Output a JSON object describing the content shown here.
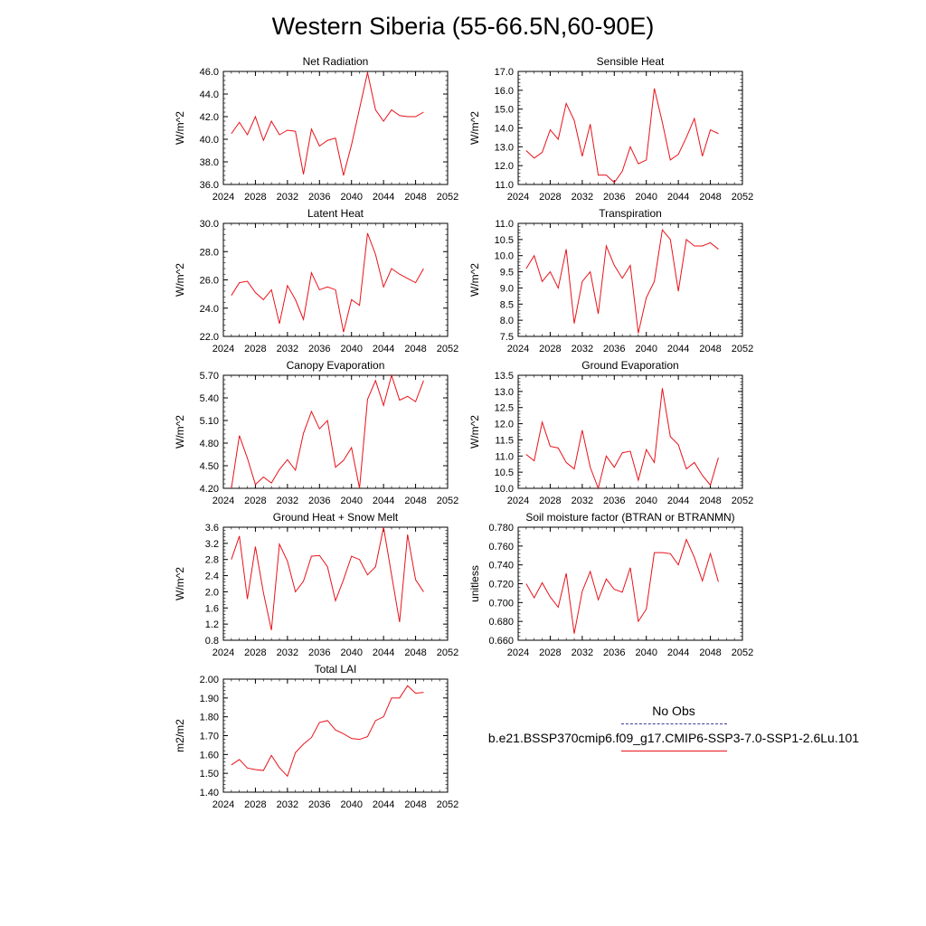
{
  "title": "Western Siberia (55-66.5N,60-90E)",
  "legend": [
    {
      "label": "No Obs",
      "color": "#3c3c9a",
      "dash": "dashed"
    },
    {
      "label": "b.e21.BSSP370cmip6.f09_g17.CMIP6-SSP3-7.0-SSP1-2.6Lu.101",
      "color": "#e8121a",
      "dash": "solid"
    }
  ],
  "line_color": "#e8121a",
  "chart_data": [
    {
      "type": "line",
      "title": "Net Radiation",
      "ylabel": "W/m^2",
      "xlim": [
        2024,
        2052
      ],
      "xticks": [
        "2024",
        "2028",
        "2032",
        "2036",
        "2040",
        "2044",
        "2048",
        "2052"
      ],
      "ylim": [
        36.0,
        46.0
      ],
      "yticks": [
        "36.0",
        "38.0",
        "40.0",
        "42.0",
        "44.0",
        "46.0"
      ],
      "x": [
        2025,
        2026,
        2027,
        2028,
        2029,
        2030,
        2031,
        2032,
        2033,
        2034,
        2035,
        2036,
        2037,
        2038,
        2039,
        2040,
        2041,
        2042,
        2043,
        2044,
        2045,
        2046,
        2047,
        2048,
        2049
      ],
      "values": [
        40.5,
        41.5,
        40.4,
        42.0,
        39.9,
        41.6,
        40.4,
        40.8,
        40.7,
        36.9,
        40.9,
        39.4,
        39.9,
        40.1,
        36.8,
        39.5,
        42.7,
        45.9,
        42.6,
        41.6,
        42.6,
        42.1,
        42.0,
        42.0,
        42.4
      ]
    },
    {
      "type": "line",
      "title": "Sensible Heat",
      "ylabel": "W/m^2",
      "xlim": [
        2024,
        2052
      ],
      "xticks": [
        "2024",
        "2028",
        "2032",
        "2036",
        "2040",
        "2044",
        "2048",
        "2052"
      ],
      "ylim": [
        11.0,
        17.0
      ],
      "yticks": [
        "11.0",
        "12.0",
        "13.0",
        "14.0",
        "15.0",
        "16.0",
        "17.0"
      ],
      "x": [
        2025,
        2026,
        2027,
        2028,
        2029,
        2030,
        2031,
        2032,
        2033,
        2034,
        2035,
        2036,
        2037,
        2038,
        2039,
        2040,
        2041,
        2042,
        2043,
        2044,
        2045,
        2046,
        2047,
        2048,
        2049
      ],
      "values": [
        12.8,
        12.4,
        12.7,
        13.9,
        13.4,
        15.3,
        14.4,
        12.5,
        14.2,
        11.5,
        11.5,
        11.1,
        11.7,
        13.0,
        12.1,
        12.3,
        16.1,
        14.3,
        12.3,
        12.6,
        13.5,
        14.5,
        12.5,
        13.9,
        13.7
      ]
    },
    {
      "type": "line",
      "title": "Latent Heat",
      "ylabel": "W/m^2",
      "xlim": [
        2024,
        2052
      ],
      "xticks": [
        "2024",
        "2028",
        "2032",
        "2036",
        "2040",
        "2044",
        "2048",
        "2052"
      ],
      "ylim": [
        22.0,
        30.0
      ],
      "yticks": [
        "22.0",
        "24.0",
        "26.0",
        "28.0",
        "30.0"
      ],
      "x": [
        2025,
        2026,
        2027,
        2028,
        2029,
        2030,
        2031,
        2032,
        2033,
        2034,
        2035,
        2036,
        2037,
        2038,
        2039,
        2040,
        2041,
        2042,
        2043,
        2044,
        2045,
        2046,
        2047,
        2048,
        2049
      ],
      "values": [
        24.9,
        25.8,
        25.9,
        25.1,
        24.6,
        25.3,
        22.9,
        25.6,
        24.6,
        23.2,
        26.5,
        25.3,
        25.5,
        25.3,
        22.3,
        24.6,
        24.2,
        29.3,
        27.8,
        25.5,
        26.8,
        26.4,
        26.1,
        25.8,
        26.8
      ]
    },
    {
      "type": "line",
      "title": "Transpiration",
      "ylabel": "W/m^2",
      "xlim": [
        2024,
        2052
      ],
      "xticks": [
        "2024",
        "2028",
        "2032",
        "2036",
        "2040",
        "2044",
        "2048",
        "2052"
      ],
      "ylim": [
        7.5,
        11.0
      ],
      "yticks": [
        "7.5",
        "8.0",
        "8.5",
        "9.0",
        "9.5",
        "10.0",
        "10.5",
        "11.0"
      ],
      "x": [
        2025,
        2026,
        2027,
        2028,
        2029,
        2030,
        2031,
        2032,
        2033,
        2034,
        2035,
        2036,
        2037,
        2038,
        2039,
        2040,
        2041,
        2042,
        2043,
        2044,
        2045,
        2046,
        2047,
        2048,
        2049
      ],
      "values": [
        9.6,
        10.0,
        9.2,
        9.5,
        9.0,
        10.2,
        7.9,
        9.2,
        9.5,
        8.2,
        10.3,
        9.7,
        9.3,
        9.7,
        7.6,
        8.7,
        9.2,
        10.8,
        10.5,
        8.9,
        10.5,
        10.3,
        10.3,
        10.4,
        10.2
      ]
    },
    {
      "type": "line",
      "title": "Canopy Evaporation",
      "ylabel": "W/m^2",
      "xlim": [
        2024,
        2052
      ],
      "xticks": [
        "2024",
        "2028",
        "2032",
        "2036",
        "2040",
        "2044",
        "2048",
        "2052"
      ],
      "ylim": [
        4.2,
        5.7
      ],
      "yticks": [
        "4.20",
        "4.50",
        "4.80",
        "5.10",
        "5.40",
        "5.70"
      ],
      "x": [
        2025,
        2026,
        2027,
        2028,
        2029,
        2030,
        2031,
        2032,
        2033,
        2034,
        2035,
        2036,
        2037,
        2038,
        2039,
        2040,
        2041,
        2042,
        2043,
        2044,
        2045,
        2046,
        2047,
        2048,
        2049
      ],
      "values": [
        4.2,
        4.9,
        4.6,
        4.25,
        4.35,
        4.27,
        4.45,
        4.58,
        4.44,
        4.93,
        5.22,
        4.99,
        5.1,
        4.48,
        4.57,
        4.74,
        4.2,
        5.38,
        5.63,
        5.3,
        5.7,
        5.37,
        5.42,
        5.35,
        5.63
      ]
    },
    {
      "type": "line",
      "title": "Ground Evaporation",
      "ylabel": "W/m^2",
      "xlim": [
        2024,
        2052
      ],
      "xticks": [
        "2024",
        "2028",
        "2032",
        "2036",
        "2040",
        "2044",
        "2048",
        "2052"
      ],
      "ylim": [
        10.0,
        13.5
      ],
      "yticks": [
        "10.0",
        "10.5",
        "11.0",
        "11.5",
        "12.0",
        "12.5",
        "13.0",
        "13.5"
      ],
      "x": [
        2025,
        2026,
        2027,
        2028,
        2029,
        2030,
        2031,
        2032,
        2033,
        2034,
        2035,
        2036,
        2037,
        2038,
        2039,
        2040,
        2041,
        2042,
        2043,
        2044,
        2045,
        2046,
        2047,
        2048,
        2049
      ],
      "values": [
        11.05,
        10.85,
        12.05,
        11.3,
        11.25,
        10.8,
        10.6,
        11.8,
        10.65,
        10.0,
        11.0,
        10.65,
        11.1,
        11.15,
        10.25,
        11.2,
        10.8,
        13.1,
        11.6,
        11.35,
        10.6,
        10.8,
        10.4,
        10.1,
        10.95
      ]
    },
    {
      "type": "line",
      "title": "Ground Heat + Snow Melt",
      "ylabel": "W/m^2",
      "xlim": [
        2024,
        2052
      ],
      "xticks": [
        "2024",
        "2028",
        "2032",
        "2036",
        "2040",
        "2044",
        "2048",
        "2052"
      ],
      "ylim": [
        0.8,
        3.6
      ],
      "yticks": [
        "0.8",
        "1.2",
        "1.6",
        "2.0",
        "2.4",
        "2.8",
        "3.2",
        "3.6"
      ],
      "x": [
        2025,
        2026,
        2027,
        2028,
        2029,
        2030,
        2031,
        2032,
        2033,
        2034,
        2035,
        2036,
        2037,
        2038,
        2039,
        2040,
        2041,
        2042,
        2043,
        2044,
        2045,
        2046,
        2047,
        2048,
        2049
      ],
      "values": [
        2.8,
        3.38,
        1.82,
        3.12,
        1.98,
        1.05,
        3.18,
        2.76,
        2.0,
        2.26,
        2.88,
        2.9,
        2.62,
        1.78,
        2.3,
        2.88,
        2.8,
        2.42,
        2.62,
        3.6,
        2.42,
        1.25,
        3.42,
        2.3,
        2.0
      ]
    },
    {
      "type": "line",
      "title": "Soil moisture factor (BTRAN or BTRANMN)",
      "ylabel": "unitless",
      "xlim": [
        2024,
        2052
      ],
      "xticks": [
        "2024",
        "2028",
        "2032",
        "2036",
        "2040",
        "2044",
        "2048",
        "2052"
      ],
      "ylim": [
        0.66,
        0.78
      ],
      "yticks": [
        "0.660",
        "0.680",
        "0.700",
        "0.720",
        "0.740",
        "0.760",
        "0.780"
      ],
      "x": [
        2025,
        2026,
        2027,
        2028,
        2029,
        2030,
        2031,
        2032,
        2033,
        2034,
        2035,
        2036,
        2037,
        2038,
        2039,
        2040,
        2041,
        2042,
        2043,
        2044,
        2045,
        2046,
        2047,
        2048,
        2049
      ],
      "values": [
        0.72,
        0.705,
        0.721,
        0.706,
        0.695,
        0.731,
        0.667,
        0.712,
        0.733,
        0.703,
        0.725,
        0.714,
        0.711,
        0.737,
        0.68,
        0.693,
        0.753,
        0.753,
        0.752,
        0.74,
        0.767,
        0.748,
        0.723,
        0.752,
        0.722
      ]
    },
    {
      "type": "line",
      "title": "Total LAI",
      "ylabel": "m2/m2",
      "xlim": [
        2024,
        2052
      ],
      "xticks": [
        "2024",
        "2028",
        "2032",
        "2036",
        "2040",
        "2044",
        "2048",
        "2052"
      ],
      "ylim": [
        1.4,
        2.0
      ],
      "yticks": [
        "1.40",
        "1.50",
        "1.60",
        "1.70",
        "1.80",
        "1.90",
        "2.00"
      ],
      "x": [
        2025,
        2026,
        2027,
        2028,
        2029,
        2030,
        2031,
        2032,
        2033,
        2034,
        2035,
        2036,
        2037,
        2038,
        2039,
        2040,
        2041,
        2042,
        2043,
        2044,
        2045,
        2046,
        2047,
        2048,
        2049
      ],
      "values": [
        1.545,
        1.573,
        1.528,
        1.52,
        1.515,
        1.595,
        1.53,
        1.485,
        1.61,
        1.655,
        1.69,
        1.77,
        1.78,
        1.73,
        1.71,
        1.685,
        1.68,
        1.695,
        1.78,
        1.8,
        1.9,
        1.9,
        1.965,
        1.925,
        1.93
      ]
    }
  ]
}
